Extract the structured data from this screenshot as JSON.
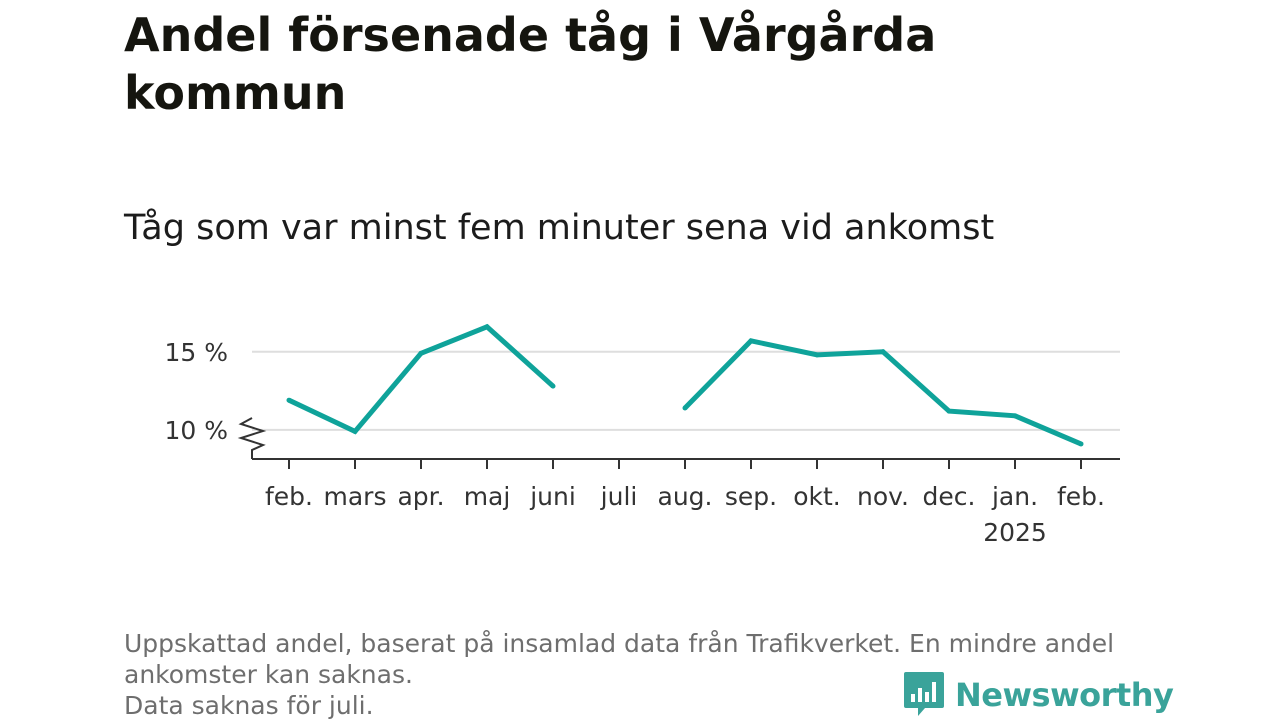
{
  "title": "Andel försenade tåg i Vårgårda kommun",
  "subtitle": "Tåg som var minst fem minuter sena vid ankomst",
  "footnote": [
    "Uppskattad andel, baserat på insamlad data från Trafikverket. En mindre andel",
    "ankomster kan saknas.",
    "Data saknas för juli."
  ],
  "logo_text": "Newsworthy",
  "colors": {
    "line": "#0fa39a",
    "grid": "#dedede",
    "axis": "#333333",
    "logo": "#3aa39a"
  },
  "chart_data": {
    "type": "line",
    "categories": [
      "feb.",
      "mars",
      "apr.",
      "maj",
      "juni",
      "juli",
      "aug.",
      "sep.",
      "okt.",
      "nov.",
      "dec.",
      "jan.",
      "feb."
    ],
    "year_label": "2025",
    "year_label_under": "jan.",
    "series": [
      {
        "values": [
          11.9,
          9.9,
          14.9,
          16.6,
          12.8,
          null,
          11.4,
          15.7,
          14.8,
          15.0,
          11.2,
          10.9,
          9.1
        ]
      }
    ],
    "y_ticks": [
      {
        "value": 10,
        "label": "10 %"
      },
      {
        "value": 15,
        "label": "15 %"
      }
    ],
    "ylim": [
      8.2,
      17.0
    ],
    "y_axis_break": true,
    "grid": "horizontal",
    "xlabel": "",
    "ylabel": ""
  }
}
